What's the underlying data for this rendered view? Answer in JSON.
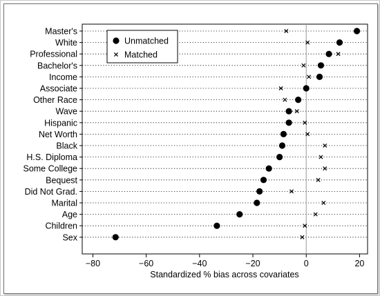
{
  "chart_data": {
    "type": "scatter",
    "title": "",
    "xlabel": "Standardized % bias across covariates",
    "ylabel": "",
    "xlim": [
      -84,
      23
    ],
    "xticks": [
      -80,
      -60,
      -40,
      -20,
      0,
      20
    ],
    "xtick_labels": [
      "−80",
      "−60",
      "−40",
      "−20",
      "0",
      "20"
    ],
    "grid": "dotted horizontal lines per covariate",
    "reference_line": 0,
    "legend_position": "top-left",
    "categories": [
      "Master's",
      "White",
      "Professional",
      "Bachelor's",
      "Income",
      "Associate",
      "Other Race",
      "Wave",
      "Hispanic",
      "Net Worth",
      "Black",
      "H.S. Diploma",
      "Some College",
      "Bequest",
      "Did Not Grad.",
      "Marital",
      "Age",
      "Children",
      "Sex"
    ],
    "series": [
      {
        "name": "Unmatched",
        "marker": "filled-circle",
        "values": [
          19,
          12.5,
          8.5,
          5.5,
          5,
          0,
          -3,
          -6.5,
          -6.5,
          -8.5,
          -9,
          -10,
          -14,
          -16,
          -17.5,
          -18.5,
          -25,
          -33.5,
          -71.5
        ]
      },
      {
        "name": "Matched",
        "marker": "x",
        "values": [
          -7.5,
          0.5,
          12,
          -1,
          1,
          -9.5,
          -8,
          -3.5,
          -0.5,
          0.5,
          7,
          5.5,
          7,
          4.5,
          -5.5,
          6.5,
          3.5,
          -0.5,
          -1.5
        ]
      }
    ]
  }
}
